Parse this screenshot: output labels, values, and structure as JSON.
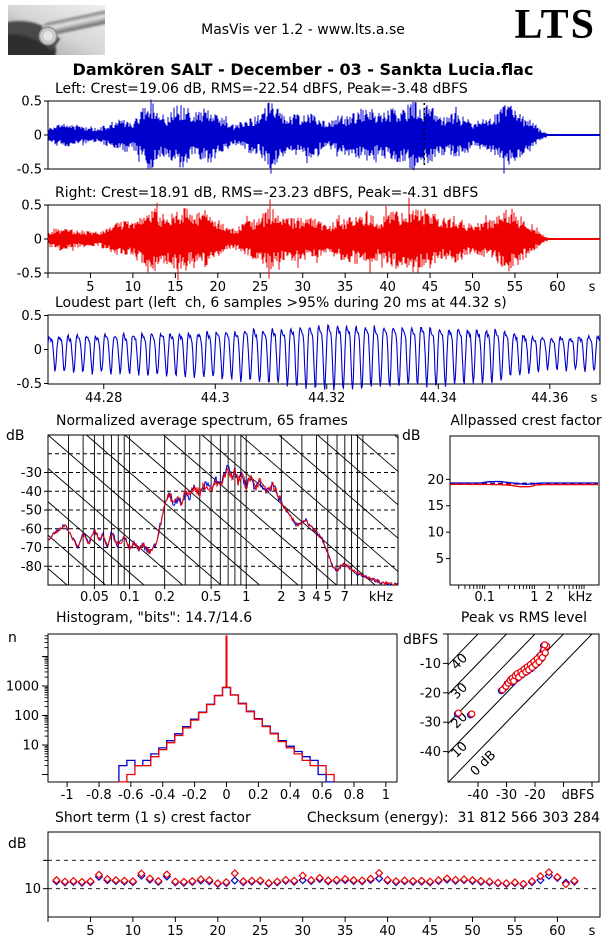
{
  "header": {
    "app_info": "MasVis ver 1.2 - www.lts.a.se",
    "brand": "LTS",
    "logo": "metal-instrument-photo"
  },
  "title": "Damkören SALT - December - 03 - Sankta Lucia.flac",
  "colors": {
    "left_channel": "#0000cc",
    "right_channel": "#ee0000",
    "axis": "#000000",
    "background": "#ffffff"
  },
  "chart_data": [
    {
      "id": "wave_left",
      "type": "area",
      "title": "Left: Crest=19.06 dB, RMS=-22.54 dBFS, Peak=-3.48 dBFS",
      "channel": "left",
      "xlim": [
        0,
        65
      ],
      "ylim": [
        -1,
        1
      ],
      "yticks": [
        0.5,
        0,
        -0.5
      ],
      "marker_time_s": 44.32,
      "envelope_per_second": [
        0.1,
        0.16,
        0.18,
        0.16,
        0.14,
        0.13,
        0.1,
        0.17,
        0.22,
        0.26,
        0.22,
        0.38,
        0.55,
        0.42,
        0.3,
        0.45,
        0.5,
        0.32,
        0.42,
        0.45,
        0.3,
        0.22,
        0.14,
        0.22,
        0.28,
        0.3,
        0.5,
        0.42,
        0.28,
        0.32,
        0.3,
        0.34,
        0.24,
        0.18,
        0.28,
        0.3,
        0.34,
        0.38,
        0.42,
        0.28,
        0.38,
        0.42,
        0.38,
        0.55,
        0.42,
        0.45,
        0.32,
        0.28,
        0.34,
        0.28,
        0.18,
        0.24,
        0.28,
        0.34,
        0.5,
        0.4,
        0.28,
        0.22,
        0.08,
        0.01,
        0.01,
        0.01,
        0.01
      ]
    },
    {
      "id": "wave_right",
      "type": "area",
      "title": "Right: Crest=18.91 dB, RMS=-23.23 dBFS, Peak=-4.31 dBFS",
      "channel": "right",
      "xlim": [
        0,
        65
      ],
      "ylim": [
        -1,
        1
      ],
      "yticks": [
        0.5,
        0,
        -0.5
      ],
      "xticks": [
        5,
        10,
        15,
        20,
        25,
        30,
        35,
        40,
        45,
        50,
        55,
        60
      ],
      "xunit": "s",
      "envelope_per_second": [
        0.12,
        0.17,
        0.19,
        0.15,
        0.13,
        0.12,
        0.11,
        0.18,
        0.24,
        0.28,
        0.24,
        0.4,
        0.52,
        0.44,
        0.32,
        0.46,
        0.52,
        0.34,
        0.44,
        0.42,
        0.28,
        0.2,
        0.15,
        0.24,
        0.3,
        0.32,
        0.48,
        0.4,
        0.3,
        0.34,
        0.32,
        0.36,
        0.26,
        0.2,
        0.3,
        0.32,
        0.36,
        0.4,
        0.44,
        0.3,
        0.4,
        0.44,
        0.4,
        0.58,
        0.44,
        0.46,
        0.34,
        0.3,
        0.36,
        0.3,
        0.2,
        0.26,
        0.3,
        0.36,
        0.52,
        0.42,
        0.3,
        0.24,
        0.09,
        0.01,
        0.01,
        0.01,
        0.01
      ]
    },
    {
      "id": "loudest_part",
      "type": "line",
      "title": "Loudest part (left  ch, 6 samples >95% during 20 ms at 44.32 s)",
      "channel": "left",
      "xlim": [
        44.27,
        44.369
      ],
      "ylim": [
        -1,
        1
      ],
      "yticks": [
        0.5,
        0,
        -0.5
      ],
      "xticks": [
        44.28,
        44.3,
        44.32,
        44.34,
        44.36
      ],
      "xunit": "s",
      "tone_freq_hz": 600,
      "envelope": [
        0.3,
        0.33,
        0.36,
        0.4,
        0.47,
        0.55,
        0.52,
        0.5,
        0.45,
        0.26,
        0.32
      ]
    },
    {
      "id": "spectrum",
      "type": "line",
      "title": "Normalized average spectrum, 65 frames",
      "ylabel": "dB",
      "xlim_khz": [
        0.02,
        20
      ],
      "ylim": [
        -90,
        -10
      ],
      "yticks": [
        -30,
        -40,
        -50,
        -60,
        -70,
        -80
      ],
      "dashed_hlines": [
        -20,
        -30,
        -40,
        -50,
        -60,
        -70,
        -80
      ],
      "xtick_labels": [
        0.05,
        0.1,
        0.2,
        0.5,
        1,
        2,
        3,
        4,
        5,
        7
      ],
      "xunit": "kHz",
      "points": [
        [
          0.02,
          -66
        ],
        [
          0.024,
          -61
        ],
        [
          0.028,
          -58
        ],
        [
          0.032,
          -64
        ],
        [
          0.036,
          -70
        ],
        [
          0.04,
          -62
        ],
        [
          0.045,
          -68
        ],
        [
          0.05,
          -60
        ],
        [
          0.055,
          -66
        ],
        [
          0.06,
          -63
        ],
        [
          0.065,
          -70
        ],
        [
          0.07,
          -62
        ],
        [
          0.08,
          -69
        ],
        [
          0.09,
          -64
        ],
        [
          0.1,
          -70
        ],
        [
          0.11,
          -68
        ],
        [
          0.12,
          -71
        ],
        [
          0.13,
          -69
        ],
        [
          0.15,
          -72
        ],
        [
          0.17,
          -68
        ],
        [
          0.18,
          -60
        ],
        [
          0.2,
          -48
        ],
        [
          0.22,
          -42
        ],
        [
          0.24,
          -46
        ],
        [
          0.26,
          -44
        ],
        [
          0.28,
          -47
        ],
        [
          0.3,
          -40
        ],
        [
          0.33,
          -43
        ],
        [
          0.36,
          -38
        ],
        [
          0.4,
          -41
        ],
        [
          0.45,
          -36
        ],
        [
          0.5,
          -39
        ],
        [
          0.55,
          -34
        ],
        [
          0.6,
          -37
        ],
        [
          0.65,
          -31
        ],
        [
          0.7,
          -27
        ],
        [
          0.75,
          -33
        ],
        [
          0.8,
          -29
        ],
        [
          0.85,
          -35
        ],
        [
          0.9,
          -31
        ],
        [
          1.0,
          -37
        ],
        [
          1.1,
          -33
        ],
        [
          1.2,
          -39
        ],
        [
          1.3,
          -35
        ],
        [
          1.5,
          -40
        ],
        [
          1.7,
          -37
        ],
        [
          1.9,
          -43
        ],
        [
          2.1,
          -48
        ],
        [
          2.4,
          -53
        ],
        [
          2.7,
          -58
        ],
        [
          3.0,
          -57
        ],
        [
          3.2,
          -55
        ],
        [
          3.5,
          -58
        ],
        [
          4.0,
          -62
        ],
        [
          4.5,
          -66
        ],
        [
          5.0,
          -73
        ],
        [
          5.5,
          -80
        ],
        [
          6.0,
          -82
        ],
        [
          6.5,
          -80
        ],
        [
          7.0,
          -79
        ],
        [
          7.5,
          -80
        ],
        [
          8.0,
          -82
        ],
        [
          9.0,
          -84
        ],
        [
          10,
          -85
        ],
        [
          12,
          -87
        ],
        [
          15,
          -89
        ],
        [
          20,
          -90
        ]
      ]
    },
    {
      "id": "allpassed_crest",
      "type": "line",
      "title": "Allpassed crest factor",
      "ylabel": "dB",
      "xlim_khz": [
        0.02,
        20
      ],
      "ylim": [
        0,
        28.2
      ],
      "yticks": [
        5,
        10,
        15,
        20
      ],
      "xtick_labels": [
        0.1,
        1,
        2
      ],
      "xunit": "kHz",
      "series": {
        "left_solid": [
          [
            0.02,
            19.3
          ],
          [
            0.08,
            19.3
          ],
          [
            0.12,
            19.55
          ],
          [
            0.2,
            19.6
          ],
          [
            0.3,
            19.4
          ],
          [
            0.45,
            19.2
          ],
          [
            0.7,
            19.05
          ],
          [
            1.0,
            19.2
          ],
          [
            1.5,
            19.3
          ],
          [
            20,
            19.3
          ]
        ],
        "right_solid": [
          [
            0.02,
            19.05
          ],
          [
            0.2,
            19.0
          ],
          [
            0.35,
            18.85
          ],
          [
            0.5,
            18.6
          ],
          [
            0.8,
            18.6
          ],
          [
            1.1,
            18.95
          ],
          [
            1.6,
            19.0
          ],
          [
            20,
            19.0
          ]
        ],
        "left_dashed": [
          [
            0.02,
            19.25
          ],
          [
            20,
            19.25
          ]
        ],
        "right_dashed": [
          [
            0.02,
            19.1
          ],
          [
            20,
            19.1
          ]
        ]
      }
    },
    {
      "id": "histogram",
      "type": "bar",
      "title": "Histogram, \"bits\": 14.7/14.6",
      "ylabel": "n",
      "yticks": [
        10,
        100,
        1000
      ],
      "xticks": [
        -1,
        -0.8,
        -0.6,
        -0.4,
        -0.2,
        0,
        0.2,
        0.4,
        0.6,
        0.8,
        1
      ],
      "xlim": [
        -1.12,
        1.07
      ],
      "bins": {
        "centers_start": -0.65,
        "step": 0.05,
        "left": [
          2,
          3,
          2,
          3,
          5,
          8,
          14,
          24,
          42,
          75,
          130,
          240,
          480,
          880,
          500,
          260,
          140,
          78,
          44,
          25,
          14,
          9,
          6,
          4,
          3,
          1,
          0
        ],
        "right": [
          0,
          1,
          2,
          2,
          4,
          7,
          12,
          21,
          38,
          70,
          125,
          235,
          470,
          900,
          490,
          250,
          135,
          75,
          42,
          24,
          13,
          8,
          5,
          3,
          2,
          2,
          1
        ]
      },
      "zero_spike": {
        "left": 40000,
        "right": 52000
      }
    },
    {
      "id": "peak_vs_rms",
      "type": "scatter",
      "title": "Peak vs RMS level",
      "xlabel": "dBFS",
      "ylabel": "dBFS",
      "xticks": [
        -40,
        -30,
        -20
      ],
      "yticks": [
        -10,
        -20,
        -30,
        -40
      ],
      "xlim": [
        -50.5,
        2.5
      ],
      "ylim": [
        -50.3,
        0
      ],
      "diag_labels": [
        "40",
        "30",
        "20",
        "10",
        "0 dB"
      ],
      "points_left": [
        [
          -47.2,
          -27.2
        ],
        [
          -42.6,
          -27.5
        ],
        [
          -31.8,
          -19.3
        ],
        [
          -30.6,
          -18.2
        ],
        [
          -29.8,
          -17.0
        ],
        [
          -29.0,
          -16.2
        ],
        [
          -28.4,
          -15.4
        ],
        [
          -27.8,
          -16.4
        ],
        [
          -27.2,
          -14.6
        ],
        [
          -26.6,
          -13.9
        ],
        [
          -26.0,
          -15.0
        ],
        [
          -25.4,
          -13.2
        ],
        [
          -24.8,
          -14.0
        ],
        [
          -24.2,
          -12.4
        ],
        [
          -23.6,
          -13.2
        ],
        [
          -23.0,
          -11.6
        ],
        [
          -22.6,
          -12.6
        ],
        [
          -22.0,
          -10.8
        ],
        [
          -21.4,
          -11.8
        ],
        [
          -20.8,
          -9.8
        ],
        [
          -20.2,
          -10.8
        ],
        [
          -19.6,
          -8.8
        ],
        [
          -19.0,
          -9.8
        ],
        [
          -18.4,
          -7.6
        ],
        [
          -17.8,
          -8.4
        ],
        [
          -17.2,
          -5.8
        ],
        [
          -16.8,
          -6.8
        ],
        [
          -16.2,
          -4.4
        ],
        [
          -17.0,
          -4.0
        ]
      ],
      "points_right": [
        [
          -46.9,
          -26.9
        ],
        [
          -42.2,
          -27.2
        ],
        [
          -31.4,
          -19.0
        ],
        [
          -30.2,
          -17.8
        ],
        [
          -29.4,
          -16.7
        ],
        [
          -28.7,
          -15.8
        ],
        [
          -28.0,
          -15.1
        ],
        [
          -27.5,
          -16.0
        ],
        [
          -26.9,
          -14.2
        ],
        [
          -26.2,
          -13.5
        ],
        [
          -25.7,
          -14.7
        ],
        [
          -25.0,
          -12.9
        ],
        [
          -24.5,
          -13.7
        ],
        [
          -23.8,
          -12.0
        ],
        [
          -23.2,
          -12.9
        ],
        [
          -22.7,
          -11.2
        ],
        [
          -22.2,
          -12.2
        ],
        [
          -21.6,
          -10.4
        ],
        [
          -21.0,
          -11.4
        ],
        [
          -20.4,
          -9.4
        ],
        [
          -19.8,
          -10.4
        ],
        [
          -19.2,
          -8.4
        ],
        [
          -18.6,
          -9.4
        ],
        [
          -18.0,
          -7.2
        ],
        [
          -17.4,
          -8.0
        ],
        [
          -16.9,
          -5.4
        ],
        [
          -16.4,
          -6.4
        ],
        [
          -15.9,
          -4.1
        ],
        [
          -16.6,
          -3.7
        ]
      ]
    },
    {
      "id": "short_term_crest",
      "type": "scatter",
      "title": "Short term (1 s) crest factor",
      "checksum_label": "Checksum (energy):",
      "checksum_value": "31 812 566 303 284",
      "ylabel": "dB",
      "ylim": [
        0,
        30
      ],
      "yticks": [
        10
      ],
      "dashed_hlines": [
        10,
        20
      ],
      "xticks": [
        5,
        10,
        15,
        20,
        25,
        30,
        35,
        40,
        45,
        50,
        55,
        60
      ],
      "xunit": "s",
      "left": [
        12.6,
        12.2,
        12.4,
        12.1,
        12.3,
        14.2,
        13.0,
        12.7,
        12.5,
        12.3,
        14.6,
        13.2,
        12.4,
        14.3,
        12.2,
        12.1,
        12.4,
        12.9,
        12.6,
        11.7,
        12.0,
        12.9,
        12.3,
        12.5,
        12.6,
        11.8,
        12.2,
        12.8,
        12.5,
        13.0,
        12.7,
        13.4,
        12.6,
        12.8,
        13.0,
        12.7,
        12.6,
        13.1,
        13.6,
        12.8,
        12.3,
        12.6,
        12.4,
        12.5,
        12.2,
        12.7,
        13.2,
        12.8,
        13.0,
        12.7,
        12.4,
        12.2,
        11.9,
        11.7,
        12.0,
        11.5,
        12.3,
        13.0,
        14.6,
        13.8,
        12.1,
        12.5
      ],
      "right": [
        13.0,
        12.5,
        12.7,
        12.4,
        12.6,
        14.9,
        13.4,
        13.0,
        12.8,
        12.6,
        15.3,
        13.6,
        12.7,
        15.0,
        12.5,
        12.4,
        12.7,
        13.3,
        13.0,
        11.9,
        12.3,
        15.4,
        12.6,
        12.8,
        12.9,
        12.0,
        12.5,
        13.1,
        12.8,
        14.6,
        13.0,
        13.8,
        12.9,
        13.1,
        13.4,
        13.0,
        12.9,
        13.5,
        15.5,
        13.1,
        12.6,
        12.9,
        12.7,
        12.8,
        12.5,
        13.0,
        13.6,
        13.1,
        13.3,
        13.0,
        12.7,
        12.5,
        12.1,
        11.9,
        12.2,
        11.7,
        12.6,
        14.4,
        15.8,
        14.1,
        11.6,
        12.8
      ]
    }
  ]
}
